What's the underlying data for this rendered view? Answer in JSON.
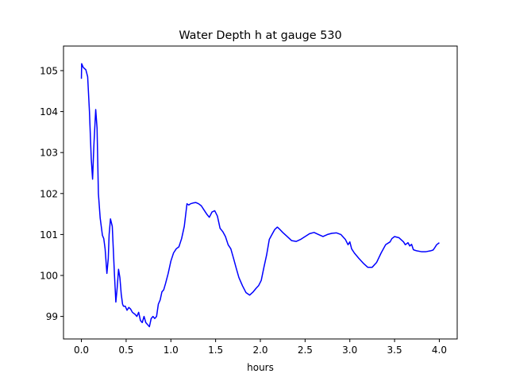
{
  "chart_data": {
    "type": "line",
    "title": "Water Depth h at gauge 530",
    "xlabel": "hours",
    "ylabel": "",
    "xlim": [
      -0.2,
      4.2
    ],
    "ylim": [
      98.45,
      105.6
    ],
    "xticks": [
      0.0,
      0.5,
      1.0,
      1.5,
      2.0,
      2.5,
      3.0,
      3.5,
      4.0
    ],
    "xtick_labels": [
      "0.0",
      "0.5",
      "1.0",
      "1.5",
      "2.0",
      "2.5",
      "3.0",
      "3.5",
      "4.0"
    ],
    "yticks": [
      99,
      100,
      101,
      102,
      103,
      104,
      105
    ],
    "ytick_labels": [
      "99",
      "100",
      "101",
      "102",
      "103",
      "104",
      "105"
    ],
    "grid": false,
    "series": [
      {
        "color": "#0000ff",
        "x": [
          0.0,
          0.003,
          0.02,
          0.05,
          0.07,
          0.09,
          0.11,
          0.125,
          0.14,
          0.16,
          0.175,
          0.19,
          0.21,
          0.235,
          0.25,
          0.265,
          0.285,
          0.3,
          0.31,
          0.325,
          0.345,
          0.37,
          0.385,
          0.4,
          0.415,
          0.43,
          0.445,
          0.46,
          0.47,
          0.49,
          0.51,
          0.53,
          0.55,
          0.57,
          0.6,
          0.62,
          0.64,
          0.66,
          0.68,
          0.7,
          0.72,
          0.74,
          0.76,
          0.78,
          0.8,
          0.82,
          0.84,
          0.86,
          0.88,
          0.9,
          0.92,
          0.94,
          0.97,
          1.0,
          1.03,
          1.06,
          1.09,
          1.12,
          1.15,
          1.18,
          1.2,
          1.22,
          1.25,
          1.28,
          1.31,
          1.34,
          1.37,
          1.4,
          1.43,
          1.46,
          1.49,
          1.52,
          1.55,
          1.58,
          1.61,
          1.64,
          1.67,
          1.7,
          1.73,
          1.76,
          1.8,
          1.84,
          1.88,
          1.92,
          1.95,
          1.98,
          2.01,
          2.04,
          2.07,
          2.1,
          2.13,
          2.16,
          2.19,
          2.22,
          2.25,
          2.3,
          2.35,
          2.4,
          2.45,
          2.5,
          2.55,
          2.6,
          2.65,
          2.7,
          2.75,
          2.8,
          2.85,
          2.9,
          2.95,
          2.98,
          3.0,
          3.02,
          3.05,
          3.1,
          3.15,
          3.2,
          3.25,
          3.3,
          3.35,
          3.4,
          3.45,
          3.47,
          3.5,
          3.55,
          3.6,
          3.62,
          3.65,
          3.67,
          3.69,
          3.71,
          3.72,
          3.75,
          3.8,
          3.85,
          3.9,
          3.93,
          3.95,
          3.97,
          4.0
        ],
        "y": [
          104.8,
          105.17,
          105.08,
          105.02,
          104.85,
          104.0,
          102.85,
          102.35,
          103.2,
          104.05,
          103.6,
          102.0,
          101.4,
          100.98,
          100.9,
          100.65,
          100.05,
          100.4,
          101.0,
          101.38,
          101.2,
          100.0,
          99.35,
          99.7,
          100.15,
          99.95,
          99.55,
          99.3,
          99.25,
          99.25,
          99.15,
          99.22,
          99.18,
          99.1,
          99.05,
          99.0,
          99.1,
          98.9,
          98.85,
          99.0,
          98.85,
          98.8,
          98.75,
          98.95,
          99.0,
          98.95,
          99.0,
          99.3,
          99.4,
          99.6,
          99.65,
          99.8,
          100.05,
          100.35,
          100.55,
          100.65,
          100.7,
          100.9,
          101.2,
          101.75,
          101.72,
          101.75,
          101.77,
          101.78,
          101.75,
          101.7,
          101.6,
          101.5,
          101.42,
          101.55,
          101.58,
          101.45,
          101.15,
          101.07,
          100.95,
          100.75,
          100.65,
          100.42,
          100.18,
          99.95,
          99.75,
          99.58,
          99.52,
          99.6,
          99.68,
          99.75,
          99.88,
          100.2,
          100.5,
          100.88,
          101.0,
          101.12,
          101.18,
          101.12,
          101.05,
          100.95,
          100.85,
          100.83,
          100.88,
          100.95,
          101.02,
          101.05,
          101.0,
          100.95,
          101.0,
          101.03,
          101.04,
          101.0,
          100.88,
          100.75,
          100.82,
          100.65,
          100.55,
          100.42,
          100.3,
          100.2,
          100.2,
          100.32,
          100.55,
          100.75,
          100.82,
          100.9,
          100.95,
          100.92,
          100.82,
          100.75,
          100.8,
          100.72,
          100.76,
          100.63,
          100.62,
          100.6,
          100.58,
          100.58,
          100.6,
          100.62,
          100.68,
          100.75,
          100.8
        ]
      }
    ]
  }
}
